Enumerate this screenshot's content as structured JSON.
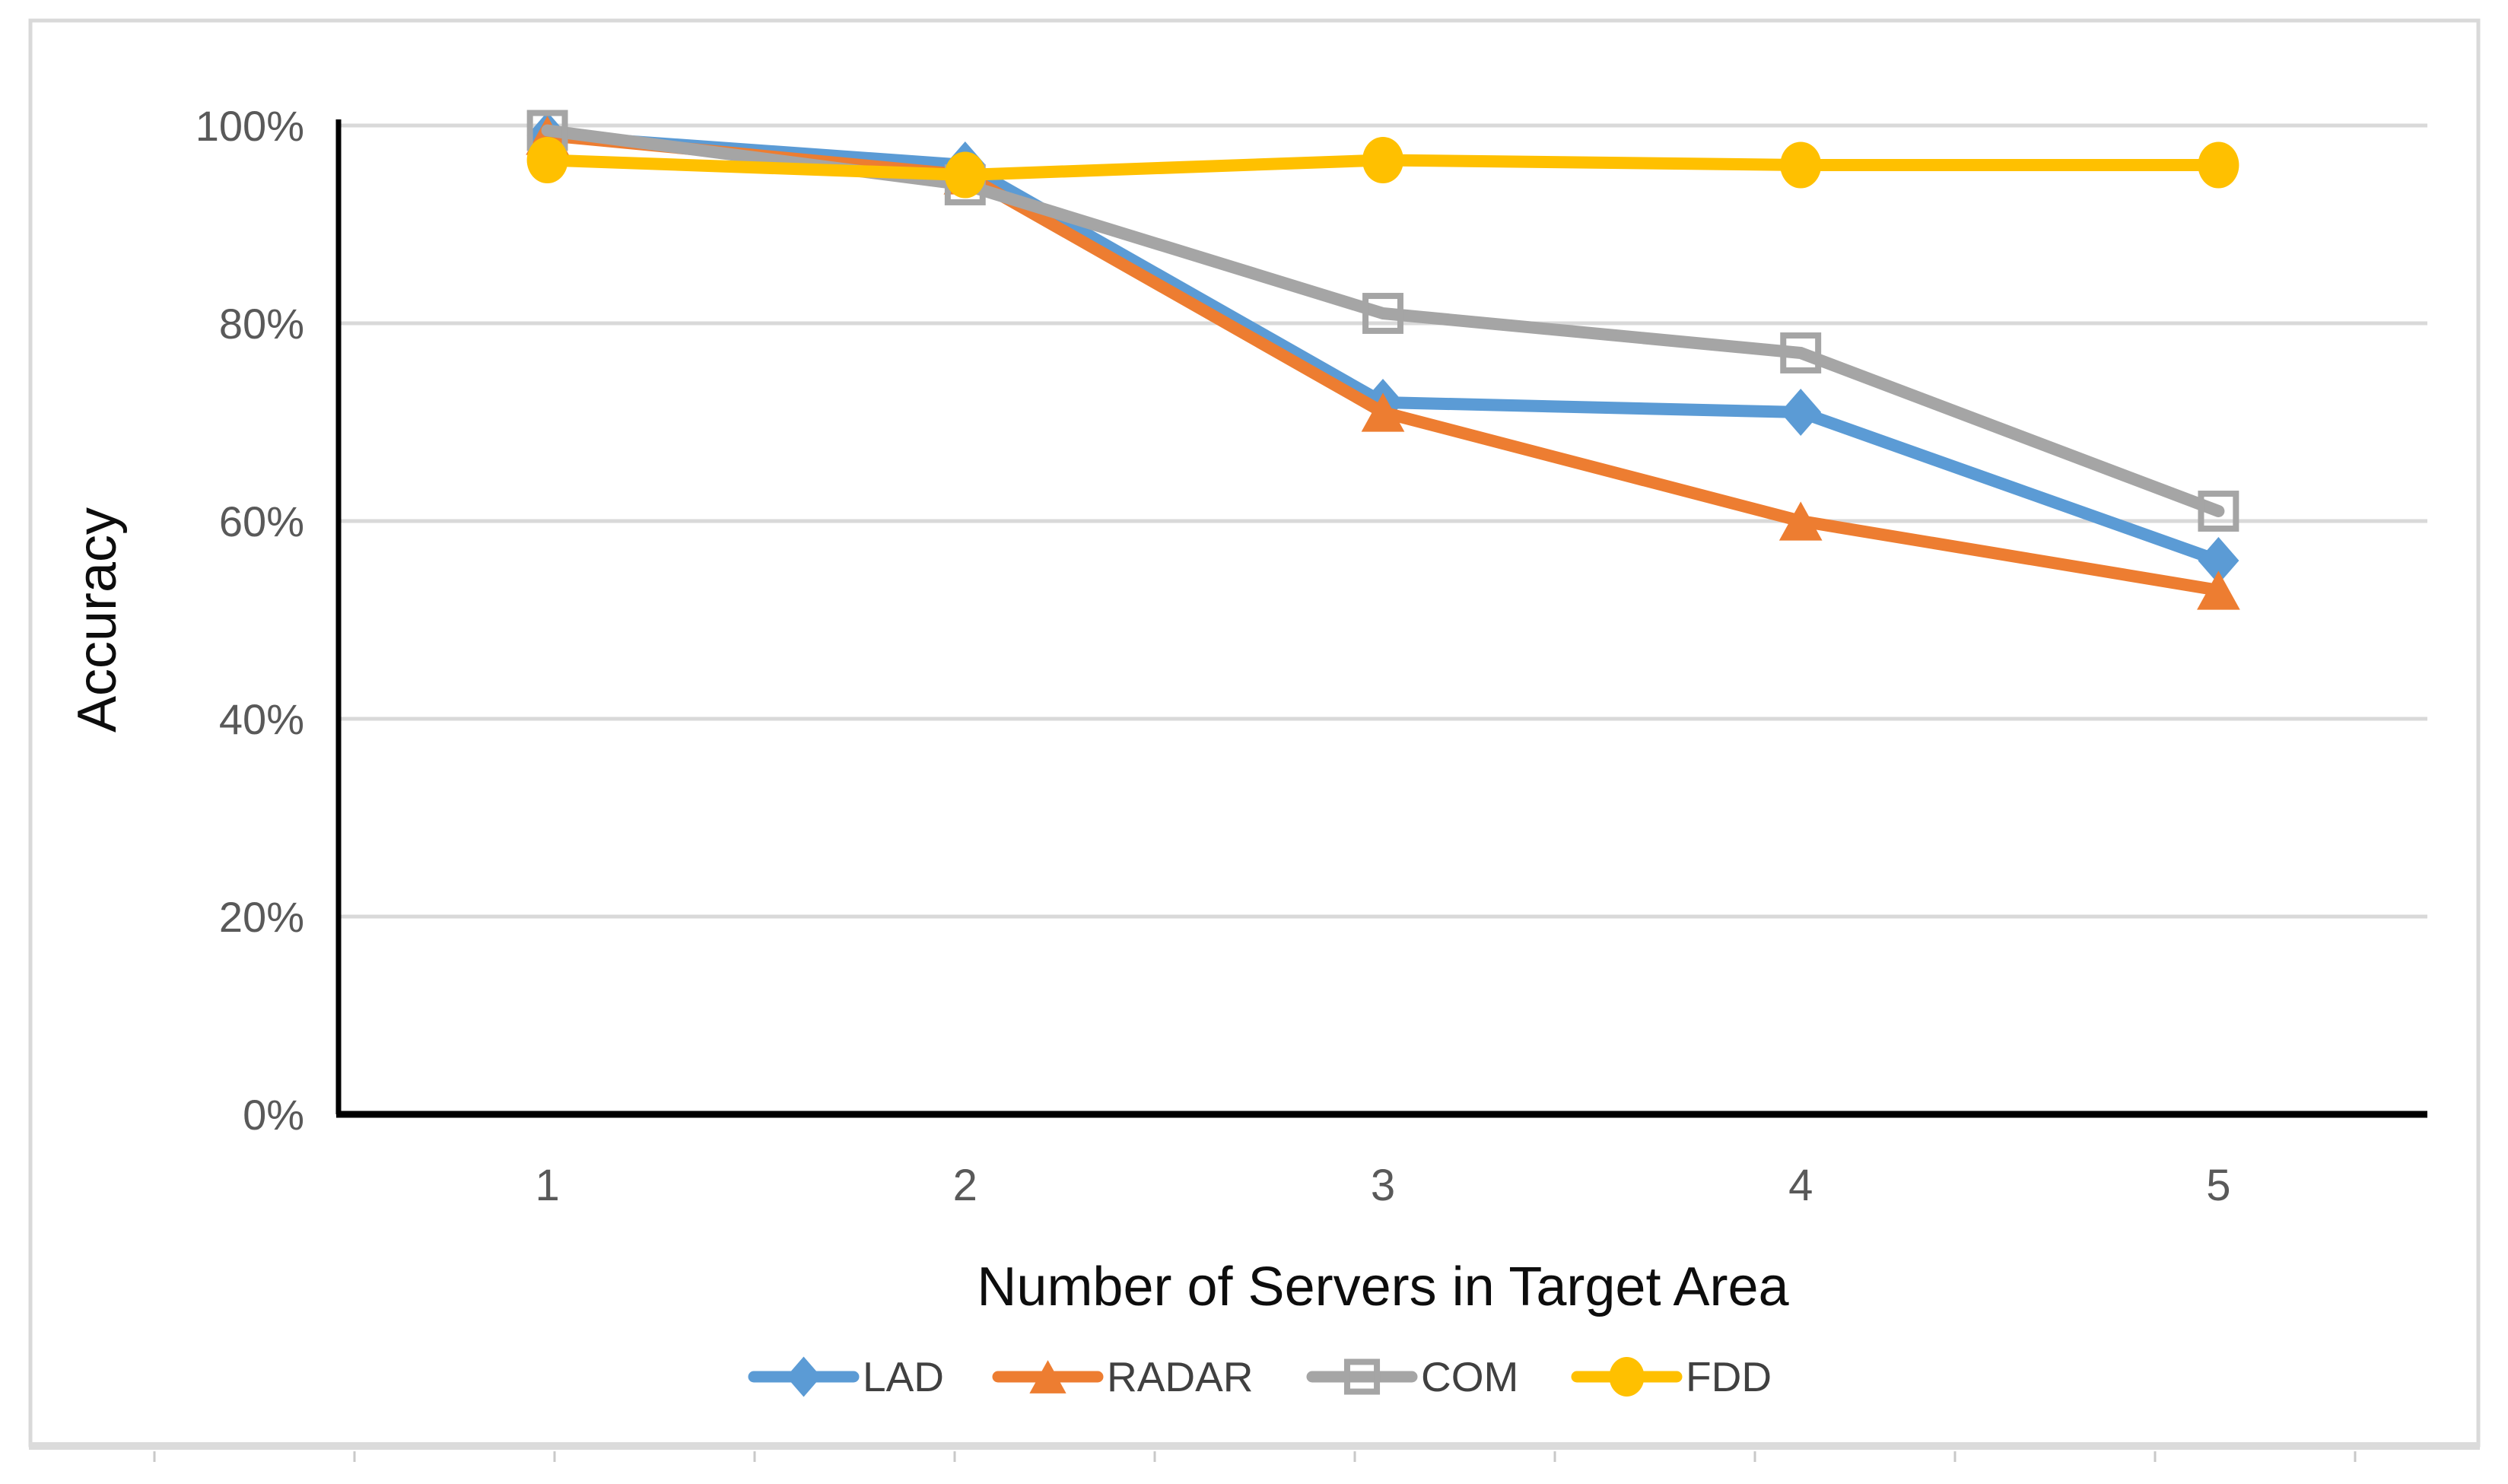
{
  "chart_data": {
    "type": "line",
    "title": "",
    "xlabel": "Number of Servers in Target Area",
    "ylabel": "Accuracy",
    "categories": [
      "1",
      "2",
      "3",
      "4",
      "5"
    ],
    "ylim": [
      0,
      100
    ],
    "ytick_step": 20,
    "ytick_labels": [
      "0%",
      "20%",
      "40%",
      "60%",
      "80%",
      "100%"
    ],
    "grid": "horizontal",
    "legend_position": "bottom",
    "series": [
      {
        "name": "LAD",
        "marker": "diamond",
        "color": "#5B9BD5",
        "values": [
          99,
          96,
          72,
          71,
          56
        ]
      },
      {
        "name": "RADAR",
        "marker": "triangle",
        "color": "#ED7D31",
        "values": [
          99,
          95,
          71,
          60,
          53
        ]
      },
      {
        "name": "COM",
        "marker": "square-outline",
        "color": "#A5A5A5",
        "values": [
          99.5,
          94,
          81,
          77,
          61
        ]
      },
      {
        "name": "FDD",
        "marker": "circle",
        "color": "#FFC000",
        "values": [
          96.5,
          95,
          96.5,
          96,
          96
        ]
      }
    ]
  },
  "colors": {
    "gridline": "#D9D9D9",
    "axis_line": "#000000",
    "tick_label": "#595959",
    "axis_title": "#0d0d0d",
    "legend_text": "#404040",
    "card_border": "#D9D9D9",
    "background": "#FFFFFF"
  }
}
